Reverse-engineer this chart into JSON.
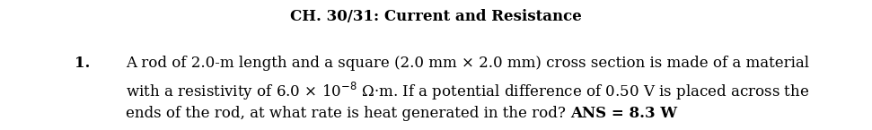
{
  "title": "CH. 30/31: Current and Resistance",
  "title_fontsize": 12,
  "title_fontweight": "bold",
  "number": "1.",
  "number_fontsize": 12,
  "number_fontweight": "bold",
  "line1": "A rod of 2.0-m length and a square (2.0 mm × 2.0 mm) cross section is made of a material",
  "line2_pre": "with a resistivity of 6.0 × 10",
  "line2_sup": "-8",
  "line2_post": " Ω·m. If a potential difference of 0.50 V is placed across the",
  "line3_normal": "ends of the rod, at what rate is heat generated in the rod? ",
  "line3_bold": "ANS = 8.3 W",
  "text_fontsize": 12,
  "background_color": "#ffffff",
  "text_color": "#000000",
  "font_family": "DejaVu Serif"
}
